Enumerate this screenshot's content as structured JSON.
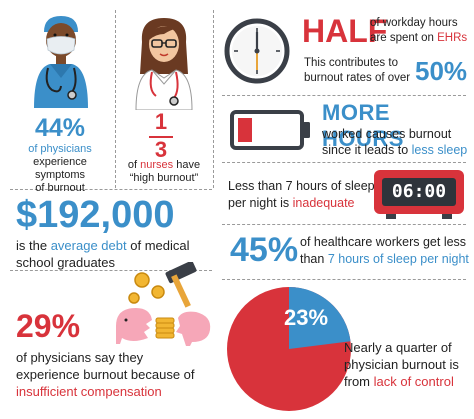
{
  "panel1": {
    "stat": "44%",
    "line1_hl": "of physicians",
    "line2": "experience symptoms",
    "line3": "of burnout"
  },
  "panel2": {
    "numerator": "1",
    "denominator": "3",
    "line1_a": "of",
    "line1_hl": "nurses",
    "line1_b": "have",
    "line2": "“high burnout”"
  },
  "panel3": {
    "headline": "HALF",
    "line1": "of workday hours",
    "line2_a": "are spent on",
    "line2_hl": "EHRs",
    "line3": "This contributes to",
    "line4": "burnout rates of over",
    "stat": "50%"
  },
  "panel4": {
    "headline": "MORE HOURS",
    "line1": "worked causes burnout",
    "line2_a": "since it leads to",
    "line2_hl": "less sleep"
  },
  "panel5": {
    "line1": "Less than 7 hours of sleep",
    "line2_a": "per night is",
    "line2_hl": "inadequate",
    "clock_time": "06:00"
  },
  "panel6": {
    "stat": "$192,000",
    "line1_a": "is the",
    "line1_hl": "average debt",
    "line1_b": "of medical",
    "line2": "school graduates"
  },
  "panel7": {
    "stat": "45%",
    "line1": "of healthcare workers get less",
    "line2_a": "than",
    "line2_hl": "7 hours of sleep per night"
  },
  "panel8": {
    "stat": "29%",
    "line1": "of physicians say they",
    "line2": "experience burnout because of",
    "line3_hl": "insufficient compensation"
  },
  "panel9": {
    "pie_label": "23%",
    "pie_fraction": 0.23,
    "line1": "Nearly a quarter of",
    "line2": "physician burnout is",
    "line3_a": "from",
    "line3_hl": "lack of control"
  },
  "colors": {
    "blue": "#3b8fc9",
    "red": "#d8333b",
    "dark": "#222222"
  },
  "icons": [
    "physician-icon",
    "nurse-icon",
    "wall-clock-icon",
    "low-battery-icon",
    "digital-alarm-clock-icon",
    "piggy-bank-hammer-icon",
    "pie-chart-icon"
  ]
}
